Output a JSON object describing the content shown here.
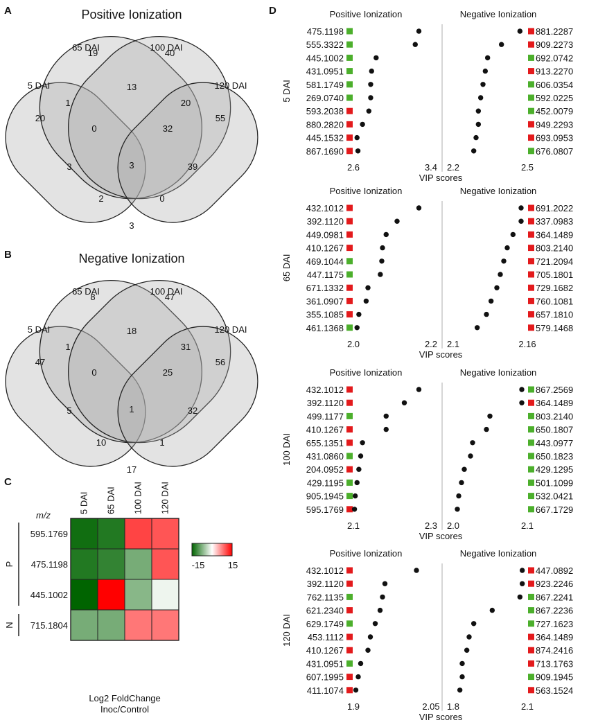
{
  "panel_labels": {
    "a": "A",
    "b": "B",
    "c": "C",
    "d": "D"
  },
  "venn": [
    {
      "title": "Positive Ionization",
      "set_labels": [
        "5 DAI",
        "65 DAI",
        "100 DAI",
        "120 DAI"
      ],
      "regions": {
        "A": "20",
        "B": "19",
        "C": "40",
        "D": "55",
        "AB": "1",
        "BC": "13",
        "CD": "20",
        "ABC": "0",
        "BCD": "32",
        "ABCD": "3",
        "AD": "2",
        "ACD": "39",
        "ABD": "0",
        "AC": "3",
        "BD": "3"
      }
    },
    {
      "title": "Negative Ionization",
      "set_labels": [
        "5 DAI",
        "65 DAI",
        "100 DAI",
        "120 DAI"
      ],
      "regions": {
        "A": "47",
        "B": "8",
        "C": "47",
        "D": "56",
        "AB": "1",
        "BC": "18",
        "CD": "31",
        "ABC": "0",
        "BCD": "25",
        "ABCD": "1",
        "AD": "10",
        "ACD": "32",
        "ABD": "1",
        "AC": "5",
        "BD": "17"
      }
    }
  ],
  "heatmap": {
    "mz_label": "m/z",
    "columns": [
      "5 DAI",
      "65 DAI",
      "100 DAI",
      "120 DAI"
    ],
    "rows": [
      "595.1769",
      "475.1198",
      "445.1002",
      "715.1804"
    ],
    "groups": [
      {
        "label": "P",
        "rows": [
          0,
          2
        ]
      },
      {
        "label": "N",
        "rows": [
          3,
          3
        ]
      }
    ],
    "values": [
      [
        -14,
        -13,
        11,
        10
      ],
      [
        -13,
        -12,
        -8,
        10
      ],
      [
        -15,
        15,
        -7,
        -1
      ],
      [
        -8,
        -8,
        8,
        8
      ]
    ],
    "scale": {
      "min": -15,
      "max": 15,
      "min_label": "-15",
      "max_label": "15"
    },
    "colors": {
      "low": "#006400",
      "mid": "#ffffff",
      "high": "#ff0000"
    },
    "xlabel": [
      "Log2 FoldChange",
      "Inoc/Control"
    ]
  },
  "chart_data": [
    {
      "type": "scatter",
      "group": "5 DAI",
      "xlabel": "VIP scores",
      "marker_colors": {
        "up": "#e31a1c",
        "down": "#4caf2c"
      },
      "positive": {
        "title": "Positive Ionization",
        "xlim": [
          2.6,
          3.4
        ],
        "tick_labels": [
          "2.6",
          "3.4"
        ],
        "mz": [
          "475.1198",
          "555.3322",
          "445.1002",
          "431.0951",
          "581.1749",
          "269.0740",
          "593.2038",
          "880.2820",
          "445.1532",
          "867.1690"
        ],
        "vip": [
          3.32,
          3.28,
          2.85,
          2.8,
          2.79,
          2.79,
          2.77,
          2.7,
          2.64,
          2.65
        ],
        "direction": [
          "down",
          "down",
          "down",
          "down",
          "down",
          "down",
          "up",
          "up",
          "up",
          "up"
        ]
      },
      "negative": {
        "title": "Negative Ionization",
        "xlim": [
          2.2,
          2.5
        ],
        "tick_labels": [
          "2.2",
          "2.5"
        ],
        "mz": [
          "881.2287",
          "909.2273",
          "692.0742",
          "913.2270",
          "606.0354",
          "592.0225",
          "452.0079",
          "949.2293",
          "693.0953",
          "676.0807"
        ],
        "vip": [
          2.48,
          2.4,
          2.34,
          2.33,
          2.32,
          2.31,
          2.3,
          2.3,
          2.29,
          2.28
        ],
        "direction": [
          "up",
          "up",
          "down",
          "up",
          "down",
          "down",
          "down",
          "up",
          "up",
          "down"
        ]
      }
    },
    {
      "type": "scatter",
      "group": "65 DAI",
      "xlabel": "VIP scores",
      "marker_colors": {
        "up": "#e31a1c",
        "down": "#4caf2c"
      },
      "positive": {
        "title": "Positive Ionization",
        "xlim": [
          2.0,
          2.2
        ],
        "tick_labels": [
          "2.0",
          "2.2"
        ],
        "mz": [
          "432.1012",
          "392.1120",
          "449.0981",
          "410.1267",
          "469.1044",
          "447.1175",
          "671.1332",
          "361.0907",
          "355.1085",
          "461.1368"
        ],
        "vip": [
          2.18,
          2.12,
          2.09,
          2.08,
          2.078,
          2.074,
          2.04,
          2.035,
          2.015,
          2.01
        ],
        "direction": [
          "up",
          "up",
          "up",
          "up",
          "down",
          "down",
          "up",
          "up",
          "up",
          "down"
        ]
      },
      "negative": {
        "title": "Negative Ionization",
        "xlim": [
          2.1,
          2.16
        ],
        "tick_labels": [
          "2.1",
          "2.16"
        ],
        "mz": [
          "691.2022",
          "337.0983",
          "364.1489",
          "803.2140",
          "721.2094",
          "705.1801",
          "729.1682",
          "760.1081",
          "657.1810",
          "579.1468"
        ],
        "vip": [
          2.157,
          2.157,
          2.15,
          2.145,
          2.142,
          2.139,
          2.136,
          2.131,
          2.127,
          2.119
        ],
        "direction": [
          "up",
          "up",
          "up",
          "up",
          "up",
          "up",
          "up",
          "up",
          "up",
          "up"
        ]
      }
    },
    {
      "type": "scatter",
      "group": "100 DAI",
      "xlabel": "VIP scores",
      "marker_colors": {
        "up": "#e31a1c",
        "down": "#4caf2c"
      },
      "positive": {
        "title": "Positive Ionization",
        "xlim": [
          2.1,
          2.3
        ],
        "tick_labels": [
          "2.1",
          "2.3"
        ],
        "mz": [
          "432.1012",
          "392.1120",
          "499.1177",
          "410.1267",
          "655.1351",
          "431.0860",
          "204.0952",
          "429.1195",
          "905.1945",
          "595.1769"
        ],
        "vip": [
          2.28,
          2.24,
          2.19,
          2.19,
          2.125,
          2.12,
          2.115,
          2.11,
          2.105,
          2.103
        ],
        "direction": [
          "up",
          "up",
          "down",
          "up",
          "up",
          "down",
          "up",
          "down",
          "down",
          "up"
        ]
      },
      "negative": {
        "title": "Negative Ionization",
        "xlim": [
          2.0,
          2.1
        ],
        "tick_labels": [
          "2.0",
          "2.1"
        ],
        "mz": [
          "867.2569",
          "364.1489",
          "803.2140",
          "650.1807",
          "443.0977",
          "650.1823",
          "429.1295",
          "501.1099",
          "532.0421",
          "667.1729"
        ],
        "vip": [
          2.096,
          2.096,
          2.05,
          2.045,
          2.025,
          2.022,
          2.013,
          2.009,
          2.005,
          2.003
        ],
        "direction": [
          "down",
          "up",
          "down",
          "down",
          "down",
          "down",
          "down",
          "down",
          "down",
          "down"
        ]
      }
    },
    {
      "type": "scatter",
      "group": "120 DAI",
      "xlabel": "VIP scores",
      "marker_colors": {
        "up": "#e31a1c",
        "down": "#4caf2c"
      },
      "positive": {
        "title": "Positive Ionization",
        "xlim": [
          1.9,
          2.05
        ],
        "tick_labels": [
          "1.9",
          "2.05"
        ],
        "mz": [
          "432.1012",
          "392.1120",
          "762.1135",
          "621.2340",
          "629.1749",
          "453.1112",
          "410.1267",
          "431.0951",
          "607.1995",
          "411.1074"
        ],
        "vip": [
          2.03,
          1.965,
          1.96,
          1.955,
          1.945,
          1.935,
          1.93,
          1.915,
          1.91,
          1.905
        ],
        "direction": [
          "up",
          "up",
          "down",
          "up",
          "down",
          "up",
          "up",
          "down",
          "up",
          "up"
        ]
      },
      "negative": {
        "title": "Negative Ionization",
        "xlim": [
          1.8,
          2.1
        ],
        "tick_labels": [
          "1.8",
          "2.1"
        ],
        "mz": [
          "447.0892",
          "923.2246",
          "867.2241",
          "867.2236",
          "727.1623",
          "364.1489",
          "874.2416",
          "713.1763",
          "909.1945",
          "563.1524"
        ],
        "vip": [
          2.09,
          2.09,
          2.08,
          1.96,
          1.88,
          1.86,
          1.85,
          1.83,
          1.83,
          1.82
        ],
        "direction": [
          "up",
          "up",
          "down",
          "down",
          "down",
          "up",
          "up",
          "up",
          "down",
          "up"
        ]
      }
    }
  ]
}
